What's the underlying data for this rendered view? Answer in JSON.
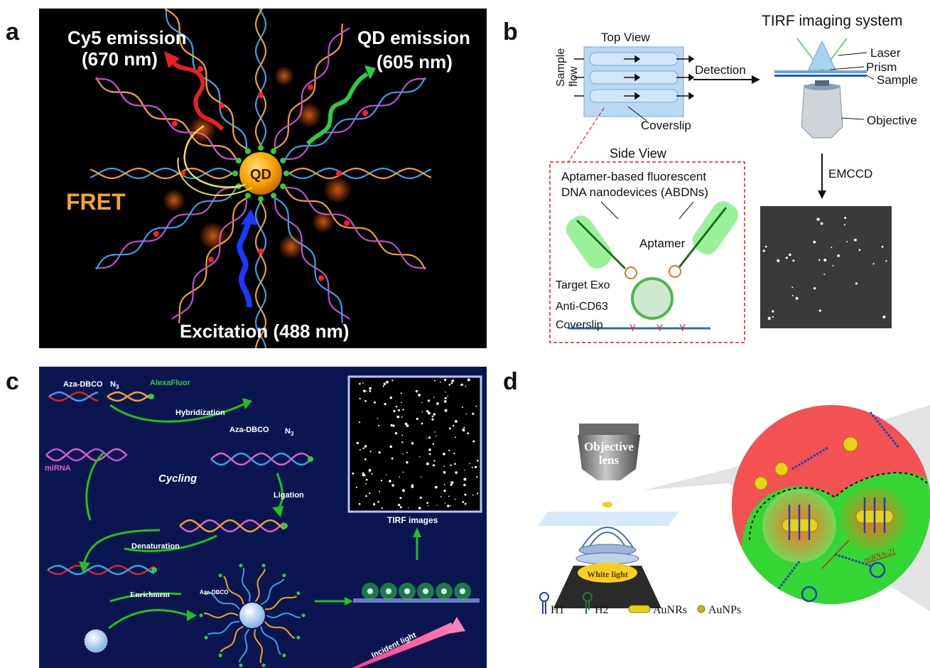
{
  "panels": {
    "a": {
      "letter": "a",
      "cy5_line1": "Cy5 emission",
      "cy5_line2": "(670 nm)",
      "qd_line1": "QD emission",
      "qd_line2": "(605 nm)",
      "qd_label": "QD",
      "fret": "FRET",
      "excitation": "Excitation (488 nm)"
    },
    "b": {
      "letter": "b",
      "top_view": "Top View",
      "sample_flow_1": "Sample",
      "sample_flow_2": "flow",
      "coverslip_top": "Coverslip",
      "detection": "Detection",
      "tirf_title": "TIRF imaging system",
      "laser": "Laser",
      "prism": "Prism",
      "sample": "Sample",
      "objective": "Objective",
      "emccd": "EMCCD",
      "side_view": "Side View",
      "abdn_line1": "Aptamer-based fluorescent",
      "abdn_line2": "DNA nanodevices (ABDNs)",
      "aptamer": "Aptamer",
      "target_exo": "Target Exo",
      "anti_cd63": "Anti-CD63",
      "coverslip_side": "Coverslip"
    },
    "c": {
      "letter": "c",
      "aza_dbco_1": "Aza-DBCO",
      "n3_1": "N",
      "n3_sub": "3",
      "alexafluor": "AlexaFluor",
      "hybridization": "Hybridization",
      "mirna": "miRNA",
      "aza_dbco_2": "Aza-DBCO",
      "n3_2": "N",
      "cycling": "Cycling",
      "ligation": "Ligation",
      "denaturation": "Denaturation",
      "enrichment": "Enrichment",
      "aza_dbco_3": "Aza-DBCO",
      "tirf_images": "TIRF images",
      "incident_light": "Incident light"
    },
    "d": {
      "letter": "d",
      "objective_line1": "Objective",
      "objective_line2": "lens",
      "white_light": "White light",
      "mirna21": "miRNA-21",
      "legend": [
        {
          "label": "H1",
          "color": "#1f3fbf"
        },
        {
          "label": "H2",
          "color": "#1a7a3a"
        },
        {
          "label": "AuNRs",
          "color": "#e8d21a"
        },
        {
          "label": "AuNPs",
          "color": "#c9b51a"
        }
      ]
    }
  },
  "colors": {
    "panel_a_bg": "#000000",
    "panel_c_bg": "#0b1650",
    "accent_green": "#2ecc40",
    "fret_orange": "#f5a623",
    "red_circle": "#f05050",
    "green_region": "#33d633"
  }
}
